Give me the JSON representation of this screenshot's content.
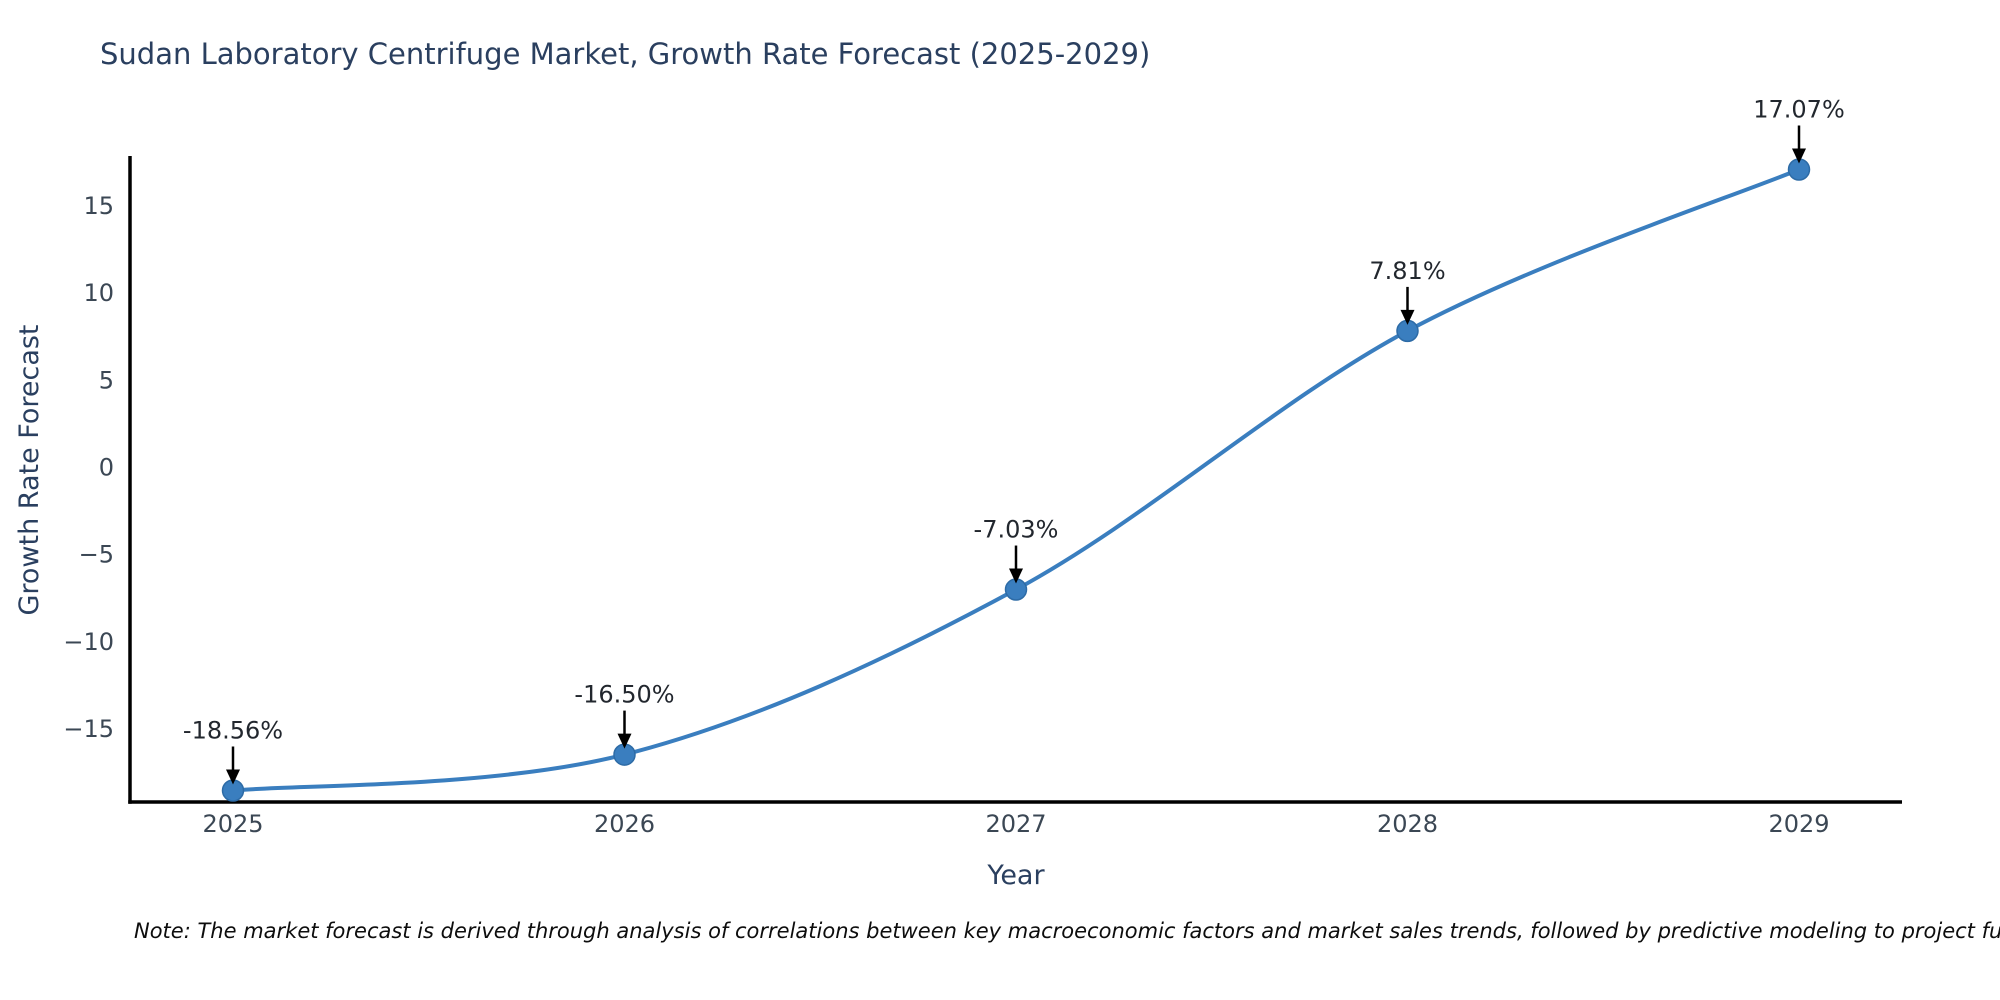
{
  "title": "Sudan Laboratory Centrifuge Market, Growth Rate Forecast (2025-2029)",
  "note": "Note: The market forecast is derived through analysis of correlations between key macroeconomic factors and market sales trends, followed by predictive modeling to project future sales",
  "chart_data": {
    "type": "line",
    "title": "Sudan Laboratory Centrifuge Market, Growth Rate Forecast (2025-2029)",
    "xlabel": "Year",
    "ylabel": "Growth Rate Forecast",
    "x": [
      2025,
      2026,
      2027,
      2028,
      2029
    ],
    "x_tick_labels": [
      "2025",
      "2026",
      "2027",
      "2028",
      "2029"
    ],
    "y": [
      -18.56,
      -16.5,
      -7.03,
      7.81,
      17.07
    ],
    "point_labels": [
      "-18.56%",
      "-16.50%",
      "-7.03%",
      "7.81%",
      "17.07%"
    ],
    "y_ticks": [
      15,
      10,
      5,
      0,
      -5,
      -10,
      -15
    ],
    "y_tick_labels": [
      "15",
      "10",
      "5",
      "0",
      "−5",
      "−10",
      "−15"
    ],
    "ylim": [
      -19.22,
      17.73
    ],
    "grid": false,
    "legend": false,
    "line_shape": "spline",
    "marker": "circle"
  },
  "colors": {
    "line": "#3a7ebf",
    "marker_fill": "#3a7ebf",
    "marker_edge": "#2d6ba6",
    "axis_spine": "#000000",
    "title_text": "#2a3f5f",
    "axis_title_text": "#2a3f5f",
    "tick_text": "#3b4754",
    "annotation_text": "#22272e",
    "annotation_arrow": "#000000",
    "note_text": "#0d0d0d",
    "background": "#ffffff"
  }
}
